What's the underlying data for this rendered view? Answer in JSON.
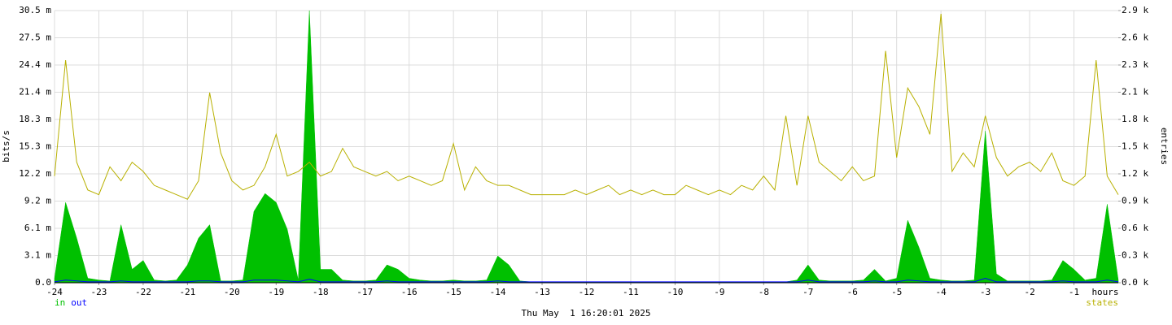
{
  "chart_data": {
    "type": "line",
    "x_label": "hours",
    "y_label": "bits/s",
    "y2_label": "entries",
    "footer": "Thu May  1 16:20:01 2025",
    "grid": true,
    "xlim": [
      -24,
      0
    ],
    "xticks": [
      -24,
      -23,
      -22,
      -21,
      -20,
      -19,
      -18,
      -17,
      -16,
      -15,
      -14,
      -13,
      -12,
      -11,
      -10,
      -9,
      -8,
      -7,
      -6,
      -5,
      -4,
      -3,
      -2,
      -1
    ],
    "ylim": [
      0,
      30.5
    ],
    "yticks": [
      {
        "value": 0,
        "label": "0.0"
      },
      {
        "value": 3.05,
        "label": "3.1 m"
      },
      {
        "value": 6.1,
        "label": "6.1 m"
      },
      {
        "value": 9.15,
        "label": "9.2 m"
      },
      {
        "value": 12.2,
        "label": "12.2 m"
      },
      {
        "value": 15.25,
        "label": "15.3 m"
      },
      {
        "value": 18.3,
        "label": "18.3 m"
      },
      {
        "value": 21.35,
        "label": "21.4 m"
      },
      {
        "value": 24.4,
        "label": "24.4 m"
      },
      {
        "value": 27.45,
        "label": "27.5 m"
      },
      {
        "value": 30.5,
        "label": "30.5 m"
      }
    ],
    "y2lim": [
      0,
      2935
    ],
    "y2ticks": [
      {
        "value": 0,
        "label": "0.0 k"
      },
      {
        "value": 293.5,
        "label": "0.3 k"
      },
      {
        "value": 587,
        "label": "0.6 k"
      },
      {
        "value": 880.5,
        "label": "0.9 k"
      },
      {
        "value": 1174,
        "label": "1.2 k"
      },
      {
        "value": 1467.5,
        "label": "1.5 k"
      },
      {
        "value": 1761,
        "label": "1.8 k"
      },
      {
        "value": 2054.5,
        "label": "2.1 k"
      },
      {
        "value": 2348,
        "label": "2.3 k"
      },
      {
        "value": 2641.5,
        "label": "2.6 k"
      },
      {
        "value": 2935,
        "label": "2.9 k"
      }
    ],
    "x": [
      -24,
      -23.75,
      -23.5,
      -23.25,
      -23,
      -22.75,
      -22.5,
      -22.25,
      -22,
      -21.75,
      -21.5,
      -21.25,
      -21,
      -20.75,
      -20.5,
      -20.25,
      -20,
      -19.75,
      -19.5,
      -19.25,
      -19,
      -18.75,
      -18.5,
      -18.25,
      -18,
      -17.75,
      -17.5,
      -17.25,
      -17,
      -16.75,
      -16.5,
      -16.25,
      -16,
      -15.75,
      -15.5,
      -15.25,
      -15,
      -14.75,
      -14.5,
      -14.25,
      -14,
      -13.75,
      -13.5,
      -13.25,
      -13,
      -12.75,
      -12.5,
      -12.25,
      -12,
      -11.75,
      -11.5,
      -11.25,
      -11,
      -10.75,
      -10.5,
      -10.25,
      -10,
      -9.75,
      -9.5,
      -9.25,
      -9,
      -8.75,
      -8.5,
      -8.25,
      -8,
      -7.75,
      -7.5,
      -7.25,
      -7,
      -6.75,
      -6.5,
      -6.25,
      -6,
      -5.75,
      -5.5,
      -5.25,
      -5,
      -4.75,
      -4.5,
      -4.25,
      -4,
      -3.75,
      -3.5,
      -3.25,
      -3,
      -2.75,
      -2.5,
      -2.25,
      -2,
      -1.75,
      -1.5,
      -1.25,
      -1,
      -0.75,
      -0.5,
      -0.25,
      0
    ],
    "series": [
      {
        "name": "in",
        "color": "#00c000",
        "style": "area",
        "values": [
          0.5,
          9,
          5,
          0.5,
          0.3,
          0.2,
          6.5,
          1.5,
          2.5,
          0.3,
          0.2,
          0.3,
          2,
          5,
          6.5,
          0.2,
          0.2,
          0.3,
          8,
          10,
          9,
          6,
          0.3,
          30.5,
          1.5,
          1.5,
          0.3,
          0.2,
          0.2,
          0.3,
          2,
          1.5,
          0.5,
          0.3,
          0.2,
          0.2,
          0.3,
          0.2,
          0.2,
          0.3,
          3,
          2,
          0.2,
          0.1,
          0.1,
          0.1,
          0.1,
          0.1,
          0.1,
          0.1,
          0.1,
          0.1,
          0.1,
          0.1,
          0.1,
          0.1,
          0.1,
          0.1,
          0.1,
          0.1,
          0.1,
          0.1,
          0.1,
          0.1,
          0.1,
          0.1,
          0.1,
          0.3,
          2,
          0.3,
          0.2,
          0.2,
          0.2,
          0.3,
          1.5,
          0.2,
          0.5,
          7,
          4,
          0.5,
          0.3,
          0.2,
          0.2,
          0.3,
          17,
          1,
          0.2,
          0.2,
          0.2,
          0.2,
          0.3,
          2.5,
          1.5,
          0.3,
          0.5,
          8.8,
          0.3
        ]
      },
      {
        "name": "out",
        "color": "#0000ff",
        "style": "line",
        "values": [
          0.1,
          0.3,
          0.2,
          0.1,
          0.1,
          0.1,
          0.2,
          0.1,
          0.1,
          0.1,
          0.1,
          0.1,
          0.1,
          0.2,
          0.2,
          0.1,
          0.1,
          0.1,
          0.3,
          0.3,
          0.3,
          0.2,
          0.1,
          0.4,
          0.1,
          0.1,
          0.1,
          0.1,
          0.1,
          0.1,
          0.2,
          0.1,
          0.1,
          0.1,
          0.1,
          0.1,
          0.1,
          0.1,
          0.1,
          0.1,
          0.2,
          0.1,
          0.1,
          0.1,
          0.1,
          0.1,
          0.1,
          0.1,
          0.1,
          0.1,
          0.1,
          0.1,
          0.1,
          0.1,
          0.1,
          0.1,
          0.1,
          0.1,
          0.1,
          0.1,
          0.1,
          0.1,
          0.1,
          0.1,
          0.1,
          0.1,
          0.1,
          0.1,
          0.3,
          0.1,
          0.1,
          0.1,
          0.1,
          0.1,
          0.2,
          0.1,
          0.1,
          0.3,
          0.2,
          0.1,
          0.1,
          0.1,
          0.1,
          0.1,
          0.5,
          0.1,
          0.1,
          0.1,
          0.1,
          0.1,
          0.1,
          0.2,
          0.1,
          0.1,
          0.1,
          0.3,
          0.1
        ]
      },
      {
        "name": "states",
        "color": "#b8b000",
        "style": "line",
        "axis": "y2",
        "values": [
          1150,
          2400,
          1300,
          1000,
          950,
          1250,
          1100,
          1300,
          1200,
          1050,
          1000,
          950,
          900,
          1100,
          2050,
          1400,
          1100,
          1000,
          1050,
          1250,
          1600,
          1150,
          1200,
          1300,
          1150,
          1200,
          1450,
          1250,
          1200,
          1150,
          1200,
          1100,
          1150,
          1100,
          1050,
          1100,
          1500,
          1000,
          1250,
          1100,
          1050,
          1050,
          1000,
          950,
          950,
          950,
          950,
          1000,
          950,
          1000,
          1050,
          950,
          1000,
          950,
          1000,
          950,
          950,
          1050,
          1000,
          950,
          1000,
          950,
          1050,
          1000,
          1150,
          1000,
          1800,
          1050,
          1800,
          1300,
          1200,
          1100,
          1250,
          1100,
          1150,
          2500,
          1350,
          2100,
          1900,
          1600,
          2900,
          1200,
          1400,
          1250,
          1800,
          1350,
          1150,
          1250,
          1300,
          1200,
          1400,
          1100,
          1050,
          1150,
          2400,
          1150,
          950
        ]
      }
    ]
  }
}
